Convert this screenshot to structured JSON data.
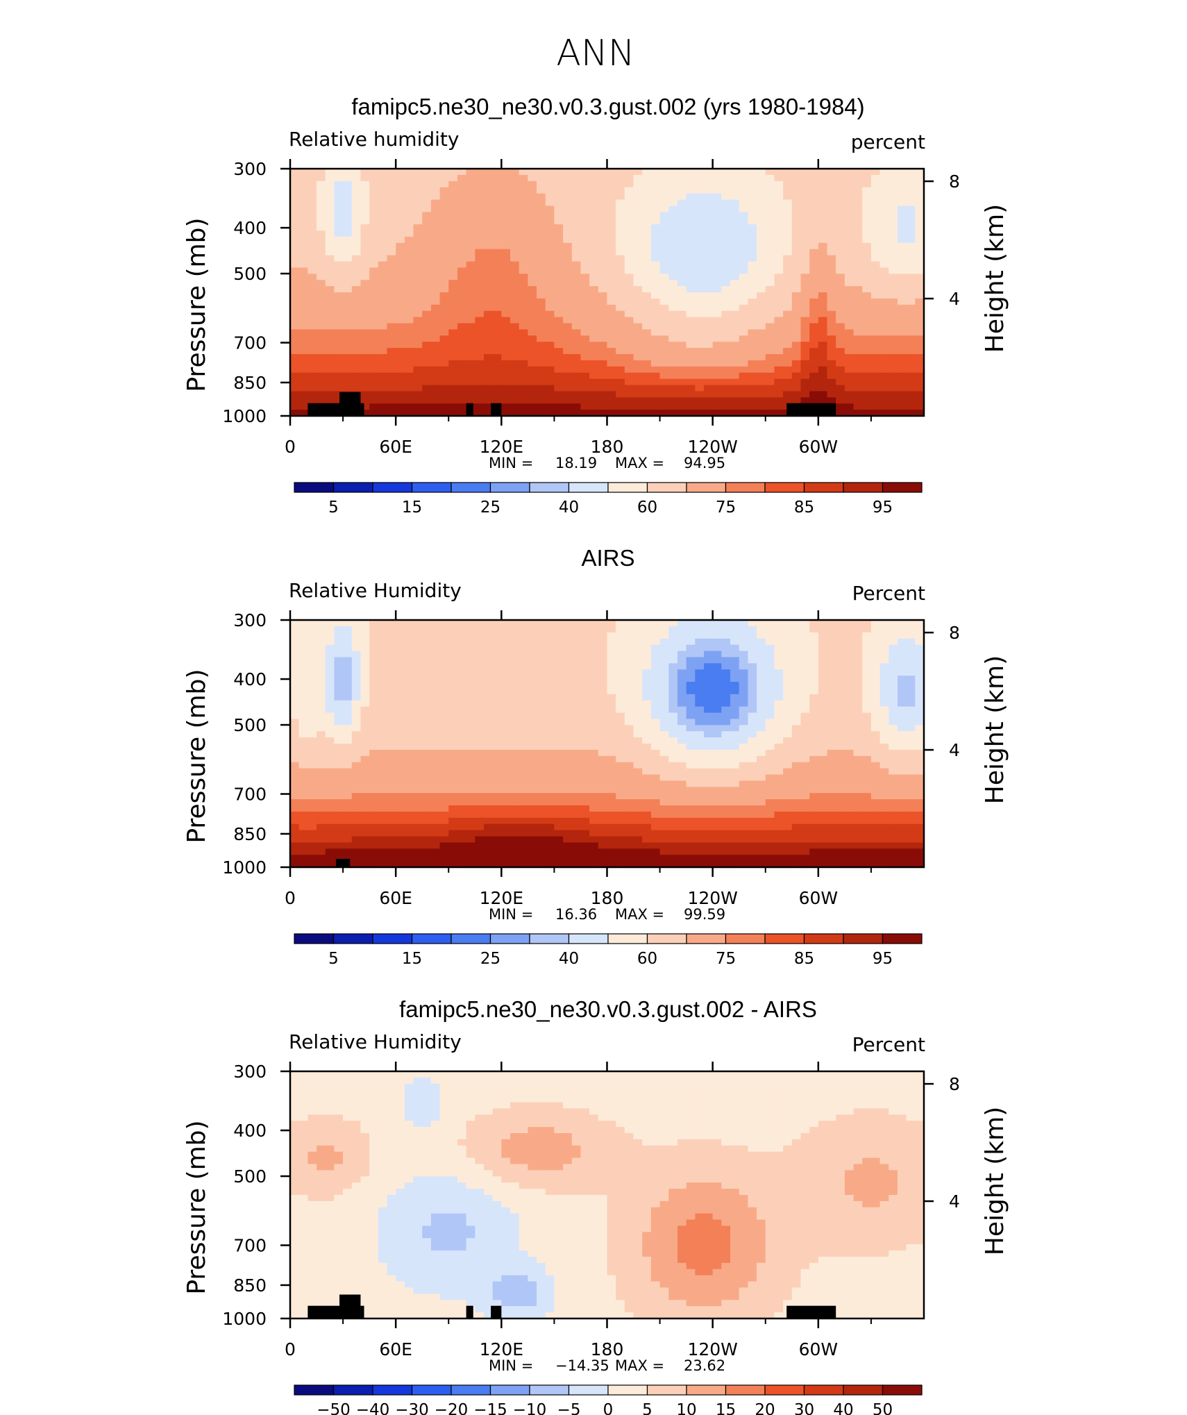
{
  "chart_data": {
    "type": "heatmap",
    "season": "ANN",
    "panels": [
      {
        "title": "famipc5.ne30_ne30.v0.3.gust.002 (yrs 1980-1984)",
        "left_label": "Relative humidity",
        "right_label": "percent",
        "ylabel": "Pressure (mb)",
        "ylabel_right": "Height (km)",
        "yticks": [
          "300",
          "400",
          "500",
          "700",
          "850",
          "1000"
        ],
        "yticks_right": [
          "8",
          "4"
        ],
        "xticks": [
          "0",
          "60E",
          "120E",
          "180",
          "120W",
          "60W"
        ],
        "min_label": "MIN =",
        "min": "18.19",
        "max_label": "MAX =",
        "max": "94.95",
        "colorbar_labels": [
          "5",
          "15",
          "25",
          "40",
          "60",
          "75",
          "85",
          "95"
        ]
      },
      {
        "title": "AIRS",
        "left_label": "Relative Humidity",
        "right_label": "Percent",
        "ylabel": "Pressure (mb)",
        "ylabel_right": "Height (km)",
        "yticks": [
          "300",
          "400",
          "500",
          "700",
          "850",
          "1000"
        ],
        "yticks_right": [
          "8",
          "4"
        ],
        "xticks": [
          "0",
          "60E",
          "120E",
          "180",
          "120W",
          "60W"
        ],
        "min_label": "MIN =",
        "min": "16.36",
        "max_label": "MAX =",
        "max": "99.59",
        "colorbar_labels": [
          "5",
          "15",
          "25",
          "40",
          "60",
          "75",
          "85",
          "95"
        ]
      },
      {
        "title": "famipc5.ne30_ne30.v0.3.gust.002 - AIRS",
        "left_label": "Relative Humidity",
        "right_label": "Percent",
        "ylabel": "Pressure (mb)",
        "ylabel_right": "Height (km)",
        "yticks": [
          "300",
          "400",
          "500",
          "700",
          "850",
          "1000"
        ],
        "yticks_right": [
          "8",
          "4"
        ],
        "xticks": [
          "0",
          "60E",
          "120E",
          "180",
          "120W",
          "60W"
        ],
        "min_label": "MIN =",
        "min": "−14.35",
        "max_label": "MAX =",
        "max": "23.62",
        "colorbar_labels": [
          "−50",
          "−40",
          "−30",
          "−20",
          "−15",
          "−10",
          "−5",
          "0",
          "5",
          "10",
          "15",
          "20",
          "30",
          "40",
          "50"
        ]
      }
    ],
    "palette": [
      "#0b0b80",
      "#0a1eb0",
      "#1538dc",
      "#2e5ef0",
      "#4a7df2",
      "#7ea2f3",
      "#b0c6f6",
      "#d7e5fb",
      "#fdebda",
      "#fcd0b8",
      "#f8aa88",
      "#f48058",
      "#ec5328",
      "#d33b16",
      "#b3260d",
      "#8a0c07"
    ]
  }
}
